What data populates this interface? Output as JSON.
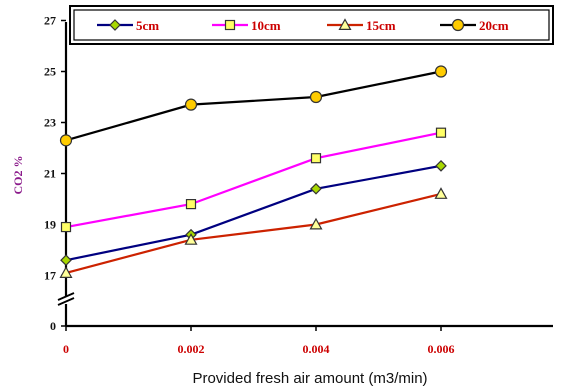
{
  "chart_data": {
    "type": "line",
    "x": [
      0,
      0.002,
      0.004,
      0.006
    ],
    "x_tick_labels": [
      "0",
      "0.002",
      "0.004",
      "0.006"
    ],
    "y_tick_labels": [
      "0",
      "17",
      "19",
      "21",
      "23",
      "25",
      "27"
    ],
    "xlabel": "Provided fresh air amount (m3/min)",
    "ylabel": "CO2 %",
    "y_axis_break": true,
    "grid": false,
    "legend_position": "top",
    "series": [
      {
        "name": "5cm",
        "values": [
          17.6,
          18.6,
          20.4,
          21.3
        ],
        "color": "#000080",
        "marker": "diamond",
        "marker_color": "#a8d800"
      },
      {
        "name": "10cm",
        "values": [
          18.9,
          19.8,
          21.6,
          22.6
        ],
        "color": "#ff00ff",
        "marker": "square",
        "marker_color": "#ffff66"
      },
      {
        "name": "15cm",
        "values": [
          17.1,
          18.4,
          19.0,
          20.2
        ],
        "color": "#cc2200",
        "marker": "triangle",
        "marker_color": "#ffff99"
      },
      {
        "name": "20cm",
        "values": [
          22.3,
          23.7,
          24.0,
          25.0
        ],
        "color": "#000000",
        "marker": "circle",
        "marker_color": "#ffcc00"
      }
    ]
  }
}
